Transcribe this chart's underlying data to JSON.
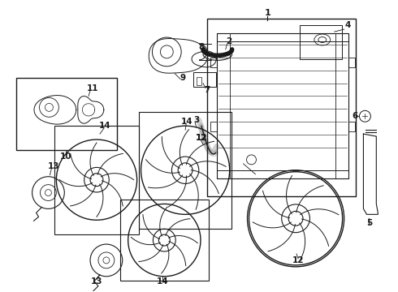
{
  "background_color": "#ffffff",
  "line_color": "#1a1a1a",
  "label_color": "#000000",
  "figsize": [
    4.9,
    3.6
  ],
  "dpi": 100,
  "lw_main": 0.8,
  "lw_thin": 0.5,
  "lw_thick": 1.2
}
